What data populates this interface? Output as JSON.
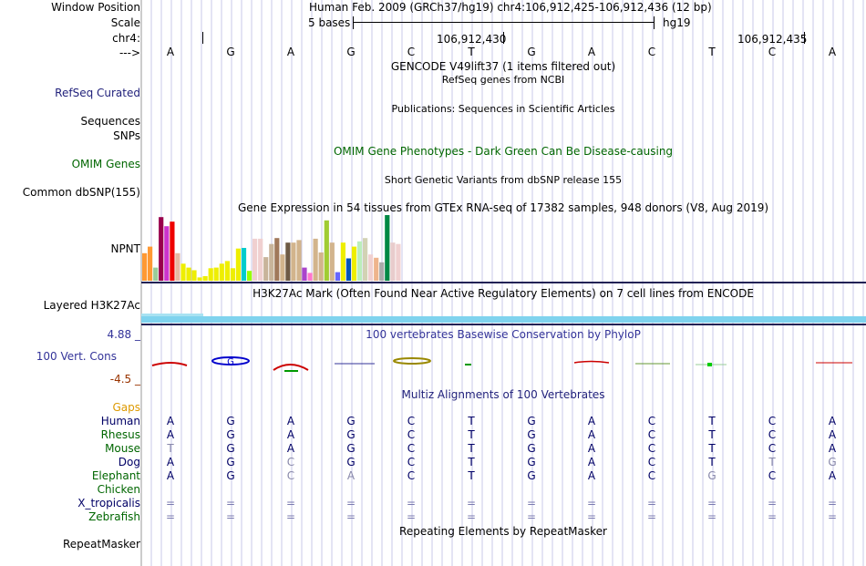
{
  "header": {
    "window_position_label": "Window Position",
    "window_position_value": "Human Feb. 2009 (GRCh37/hg19)   chr4:106,912,425-106,912,436 (12 bp)",
    "scale_label": "Scale",
    "scale_text": "5 bases",
    "scale_assembly": "hg19",
    "chrom_label": "chr4:",
    "coord1": "106,912,430",
    "coord2": "106,912,435",
    "strand_label": "--->"
  },
  "bases": [
    "A",
    "G",
    "A",
    "G",
    "C",
    "T",
    "G",
    "A",
    "C",
    "T",
    "C",
    "A"
  ],
  "tracks": {
    "gencode_title": "GENCODE V49lift37 (1 items filtered out)",
    "refseq_title": "RefSeq genes from NCBI",
    "refseq_label": "RefSeq Curated",
    "sequences_label": "Sequences",
    "publications_title": "Publications: Sequences in Scientific Articles",
    "snps_label": "SNPs",
    "omim_title": "OMIM Gene Phenotypes - Dark Green Can Be Disease-causing",
    "omim_label": "OMIM Genes",
    "dbsnp_title": "Short Genetic Variants from dbSNP release 155",
    "dbsnp_label": "Common dbSNP(155)",
    "gtex_title": "Gene Expression in 54 tissues from GTEx RNA-seq of 17382 samples, 948 donors (V8, Aug 2019)",
    "gtex_label": "NPNT",
    "h3k27ac_title": "H3K27Ac Mark (Often Found Near Active Regulatory Elements) on 7 cell lines from ENCODE",
    "h3k27ac_label": "Layered H3K27Ac",
    "phylop_title": "100 vertebrates Basewise Conservation by PhyloP",
    "phylop_label": "100 Vert. Cons",
    "phylop_max": "4.88 _",
    "phylop_min": "-4.5 _",
    "multiz_title": "Multiz Alignments of 100 Vertebrates",
    "gaps_label": "Gaps",
    "rmsk_title": "Repeating Elements by RepeatMasker",
    "rmsk_label": "RepeatMasker"
  },
  "gtex_bars": [
    {
      "v": 0.42,
      "c": "#ff9933"
    },
    {
      "v": 0.52,
      "c": "#ff9933"
    },
    {
      "v": 0.2,
      "c": "#99cc99"
    },
    {
      "v": 0.97,
      "c": "#99004c"
    },
    {
      "v": 0.83,
      "c": "#cc33cc"
    },
    {
      "v": 0.9,
      "c": "#ee0000"
    },
    {
      "v": 0.42,
      "c": "#e6b8a2"
    },
    {
      "v": 0.26,
      "c": "#eeee00"
    },
    {
      "v": 0.2,
      "c": "#eeee00"
    },
    {
      "v": 0.16,
      "c": "#eeee00"
    },
    {
      "v": 0.05,
      "c": "#eeee00"
    },
    {
      "v": 0.07,
      "c": "#eeee00"
    },
    {
      "v": 0.19,
      "c": "#eeee00"
    },
    {
      "v": 0.2,
      "c": "#eeee00"
    },
    {
      "v": 0.26,
      "c": "#eeee00"
    },
    {
      "v": 0.3,
      "c": "#eeee00"
    },
    {
      "v": 0.19,
      "c": "#eeee00"
    },
    {
      "v": 0.49,
      "c": "#eeee00"
    },
    {
      "v": 0.5,
      "c": "#00cccc"
    },
    {
      "v": 0.15,
      "c": "#99ff00"
    },
    {
      "v": 0.64,
      "c": "#f0d0d0"
    },
    {
      "v": 0.64,
      "c": "#f0d0d0"
    },
    {
      "v": 0.36,
      "c": "#c8b49a"
    },
    {
      "v": 0.56,
      "c": "#c8b49a"
    },
    {
      "v": 0.65,
      "c": "#a0785a"
    },
    {
      "v": 0.4,
      "c": "#d2b48c"
    },
    {
      "v": 0.58,
      "c": "#6e5a44"
    },
    {
      "v": 0.58,
      "c": "#d2b48c"
    },
    {
      "v": 0.62,
      "c": "#d2b48c"
    },
    {
      "v": 0.2,
      "c": "#aa44cc"
    },
    {
      "v": 0.12,
      "c": "#ff77cc"
    },
    {
      "v": 0.64,
      "c": "#d2b48c"
    },
    {
      "v": 0.43,
      "c": "#d2b48c"
    },
    {
      "v": 0.92,
      "c": "#a0cc33"
    },
    {
      "v": 0.58,
      "c": "#d2b48c"
    },
    {
      "v": 0.13,
      "c": "#6666ff"
    },
    {
      "v": 0.58,
      "c": "#eeee00"
    },
    {
      "v": 0.34,
      "c": "#0055bb"
    },
    {
      "v": 0.52,
      "c": "#eeee00"
    },
    {
      "v": 0.6,
      "c": "#bbeebb"
    },
    {
      "v": 0.65,
      "c": "#d2d2b4"
    },
    {
      "v": 0.4,
      "c": "#f0d0d0"
    },
    {
      "v": 0.35,
      "c": "#eeb48c"
    },
    {
      "v": 0.28,
      "c": "#aaaaaa"
    },
    {
      "v": 1.0,
      "c": "#008844"
    },
    {
      "v": 0.58,
      "c": "#e8cccc"
    },
    {
      "v": 0.56,
      "c": "#f0d0d0"
    }
  ],
  "species": [
    {
      "name": "Human",
      "color": "#000066",
      "bases": [
        "A",
        "G",
        "A",
        "G",
        "C",
        "T",
        "G",
        "A",
        "C",
        "T",
        "C",
        "A"
      ],
      "diff": []
    },
    {
      "name": "Rhesus",
      "color": "#006600",
      "bases": [
        "A",
        "G",
        "A",
        "G",
        "C",
        "T",
        "G",
        "A",
        "C",
        "T",
        "C",
        "A"
      ],
      "diff": []
    },
    {
      "name": "Mouse",
      "color": "#006600",
      "bases": [
        "T",
        "G",
        "A",
        "G",
        "C",
        "T",
        "G",
        "A",
        "C",
        "T",
        "C",
        "A"
      ],
      "diff": [
        0
      ]
    },
    {
      "name": "Dog",
      "color": "#000066",
      "bases": [
        "A",
        "G",
        "C",
        "G",
        "C",
        "T",
        "G",
        "A",
        "C",
        "T",
        "T",
        "G"
      ],
      "diff": [
        2,
        10,
        11
      ]
    },
    {
      "name": "Elephant",
      "color": "#006600",
      "bases": [
        "A",
        "G",
        "C",
        "A",
        "C",
        "T",
        "G",
        "A",
        "C",
        "G",
        "C",
        "A"
      ],
      "diff": [
        2,
        3,
        9
      ]
    },
    {
      "name": "Chicken",
      "color": "#006600",
      "bases": [],
      "diff": []
    },
    {
      "name": "X_tropicalis",
      "color": "#000066",
      "bases": [
        "=",
        "=",
        "=",
        "=",
        "=",
        "=",
        "=",
        "=",
        "=",
        "=",
        "=",
        "="
      ],
      "diff": []
    },
    {
      "name": "Zebrafish",
      "color": "#006600",
      "bases": [
        "=",
        "=",
        "=",
        "=",
        "=",
        "=",
        "=",
        "=",
        "=",
        "=",
        "=",
        "="
      ],
      "diff": []
    }
  ],
  "colors": {
    "track_link": "#1f1f7a",
    "omim_green": "#006600",
    "phylop_blue": "#333399",
    "phylop_neg": "#993300",
    "gaps_orange": "#dd9900",
    "grid_line": "#c8c8e8",
    "h3k27ac": "#7fd3ee"
  }
}
